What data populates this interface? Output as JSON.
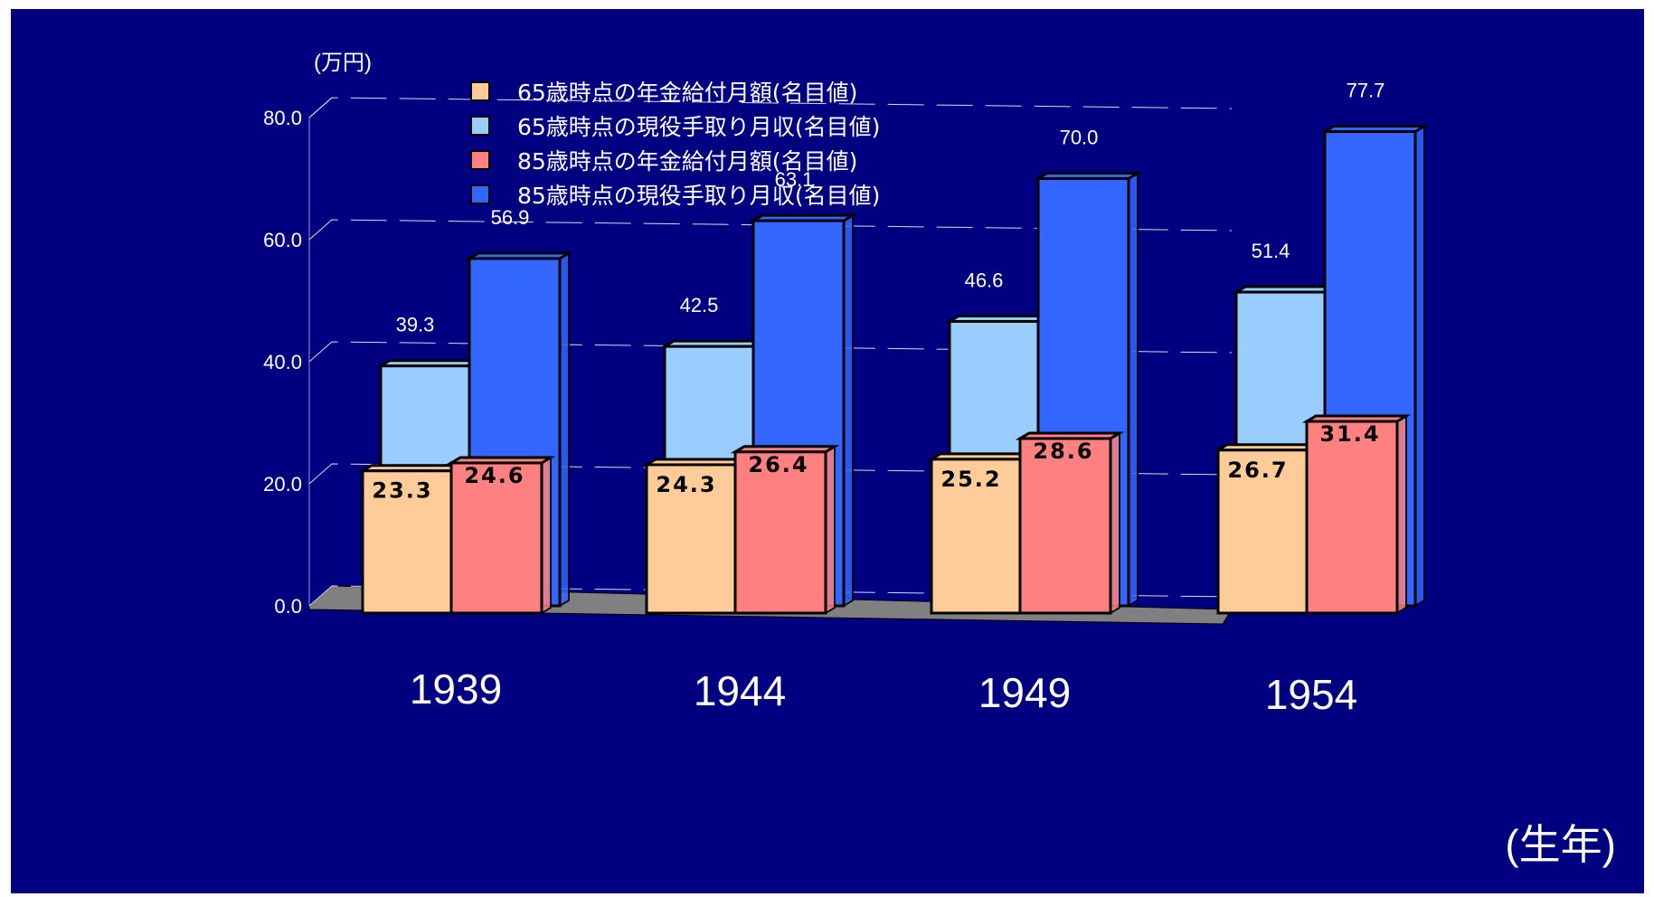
{
  "chart_data": {
    "type": "bar",
    "unit_label": "(万円)",
    "xlabel": "(生年)",
    "categories": [
      "1939",
      "1944",
      "1949",
      "1954"
    ],
    "ylim": [
      0,
      80
    ],
    "y_ticks": [
      "0.0",
      "20.0",
      "40.0",
      "60.0",
      "80.0"
    ],
    "series": [
      {
        "name": "65歳時点の年金給付月額(名目値)",
        "values": [
          23.3,
          24.3,
          25.2,
          26.7
        ],
        "color": "#FFCC99"
      },
      {
        "name": "65歳時点の現役手取り月収(名目値)",
        "values": [
          39.3,
          42.5,
          46.6,
          51.4
        ],
        "color": "#99CCFF"
      },
      {
        "name": "85歳時点の年金給付月額(名目値)",
        "values": [
          24.6,
          26.4,
          28.6,
          31.4
        ],
        "color": "#FF8080"
      },
      {
        "name": "85歳時点の現役手取り月収(名目値)",
        "values": [
          56.9,
          63.1,
          70.0,
          77.7
        ],
        "color": "#3366FF"
      }
    ],
    "data_labels": [
      [
        "23.3",
        "24.3",
        "25.2",
        "26.7"
      ],
      [
        "39.3",
        "42.5",
        "46.6",
        "51.4"
      ],
      [
        "24.6",
        "26.4",
        "28.6",
        "31.4"
      ],
      [
        "56.9",
        "63.1",
        "70.0",
        "77.7"
      ]
    ],
    "background": "#000080",
    "floor_color": "#808080",
    "grid": true,
    "legend_position": "top-center"
  }
}
